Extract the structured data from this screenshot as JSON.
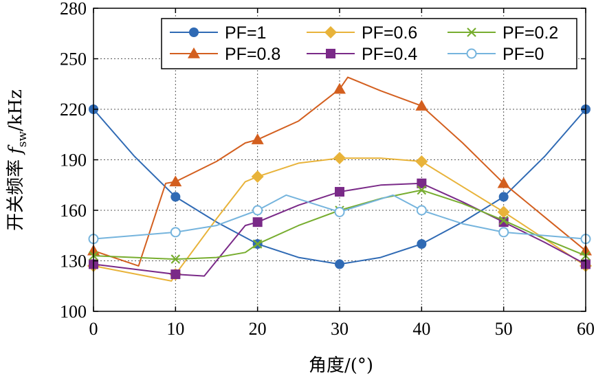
{
  "colors": {
    "PF=1": "#2f6ab4",
    "PF=0.8": "#d35f1f",
    "PF=0.6": "#e8b33a",
    "PF=0.4": "#7a2a88",
    "PF=0.2": "#77ad2f",
    "PF=0": "#75b4dd"
  },
  "chart_data": {
    "type": "line",
    "title": "",
    "xlabel": "角度/(°)",
    "ylabel": {
      "main": "开关频率",
      "symbol": "f",
      "subscript": "sw",
      "unit": "/kHz"
    },
    "xlim": [
      0,
      60
    ],
    "ylim": [
      100,
      280
    ],
    "xticks": [
      "0",
      "10",
      "20",
      "30",
      "40",
      "50",
      "60"
    ],
    "yticks": [
      "100",
      "130",
      "160",
      "190",
      "220",
      "250",
      "280"
    ],
    "grid": true,
    "legend": {
      "placement": "top-right",
      "columns": 3
    },
    "series": [
      {
        "name": "PF=1",
        "marker": "circle",
        "color": "#2f6ab4",
        "x": [
          0,
          10,
          20,
          30,
          40,
          50,
          60
        ],
        "y": [
          220,
          168,
          140,
          128,
          140,
          168,
          220
        ],
        "curve": [
          [
            0,
            220
          ],
          [
            5,
            192
          ],
          [
            10,
            168
          ],
          [
            15,
            153
          ],
          [
            20,
            140
          ],
          [
            25,
            132
          ],
          [
            30,
            128
          ],
          [
            35,
            132
          ],
          [
            40,
            140
          ],
          [
            45,
            153
          ],
          [
            50,
            168
          ],
          [
            55,
            192
          ],
          [
            60,
            220
          ]
        ]
      },
      {
        "name": "PF=0.8",
        "marker": "triangle",
        "color": "#d35f1f",
        "x": [
          0,
          10,
          20,
          30,
          40,
          50,
          60
        ],
        "y": [
          136,
          177,
          202,
          232,
          222,
          176,
          136
        ],
        "curve": [
          [
            0,
            136
          ],
          [
            5.5,
            127
          ],
          [
            8.8,
            176
          ],
          [
            10,
            177
          ],
          [
            15,
            189
          ],
          [
            18.5,
            200
          ],
          [
            20,
            202
          ],
          [
            25,
            213
          ],
          [
            30,
            232
          ],
          [
            31,
            239
          ],
          [
            35,
            231
          ],
          [
            40,
            222
          ],
          [
            45,
            200
          ],
          [
            50,
            176
          ],
          [
            55,
            156
          ],
          [
            60,
            136
          ]
        ]
      },
      {
        "name": "PF=0.6",
        "marker": "diamond",
        "color": "#e8b33a",
        "x": [
          0,
          10,
          20,
          30,
          40,
          50,
          60
        ],
        "y": [
          127,
          122,
          180,
          191,
          189,
          159,
          127
        ],
        "curve": [
          [
            0,
            127
          ],
          [
            9.5,
            118
          ],
          [
            10,
            122
          ],
          [
            15,
            155
          ],
          [
            18.5,
            177
          ],
          [
            20,
            180
          ],
          [
            25,
            188
          ],
          [
            30,
            191
          ],
          [
            35,
            191
          ],
          [
            40,
            189
          ],
          [
            45,
            174
          ],
          [
            50,
            159
          ],
          [
            55,
            143
          ],
          [
            60,
            127
          ]
        ]
      },
      {
        "name": "PF=0.4",
        "marker": "square",
        "color": "#7a2a88",
        "x": [
          0,
          10,
          20,
          30,
          40,
          50,
          60
        ],
        "y": [
          128,
          122,
          153,
          171,
          176,
          153,
          128
        ],
        "curve": [
          [
            0,
            128
          ],
          [
            5,
            125
          ],
          [
            10,
            122
          ],
          [
            13.5,
            121
          ],
          [
            16,
            136
          ],
          [
            18.5,
            151
          ],
          [
            20,
            153
          ],
          [
            25,
            163
          ],
          [
            30,
            171
          ],
          [
            35,
            175
          ],
          [
            40,
            176
          ],
          [
            45,
            165
          ],
          [
            50,
            153
          ],
          [
            55,
            141
          ],
          [
            60,
            128
          ]
        ]
      },
      {
        "name": "PF=0.2",
        "marker": "x",
        "color": "#77ad2f",
        "x": [
          0,
          10,
          20,
          30,
          40,
          50,
          60
        ],
        "y": [
          133,
          131,
          140,
          160,
          172,
          154,
          133
        ],
        "curve": [
          [
            0,
            133
          ],
          [
            5,
            132
          ],
          [
            10,
            131
          ],
          [
            15,
            132
          ],
          [
            18.5,
            135
          ],
          [
            20,
            140
          ],
          [
            25,
            151
          ],
          [
            30,
            160
          ],
          [
            35,
            167
          ],
          [
            40,
            172
          ],
          [
            45,
            164
          ],
          [
            50,
            154
          ],
          [
            55,
            143
          ],
          [
            60,
            133
          ]
        ]
      },
      {
        "name": "PF=0",
        "marker": "circle-open",
        "color": "#75b4dd",
        "x": [
          0,
          10,
          20,
          30,
          40,
          50,
          60
        ],
        "y": [
          143,
          147,
          160,
          159,
          160,
          147,
          143
        ],
        "curve": [
          [
            0,
            143
          ],
          [
            5,
            145
          ],
          [
            10,
            147
          ],
          [
            15,
            151
          ],
          [
            20,
            160
          ],
          [
            23.5,
            169
          ],
          [
            30,
            159
          ],
          [
            36.5,
            169
          ],
          [
            40,
            160
          ],
          [
            45,
            152
          ],
          [
            50,
            147
          ],
          [
            55,
            145
          ],
          [
            60,
            143
          ]
        ]
      }
    ]
  }
}
